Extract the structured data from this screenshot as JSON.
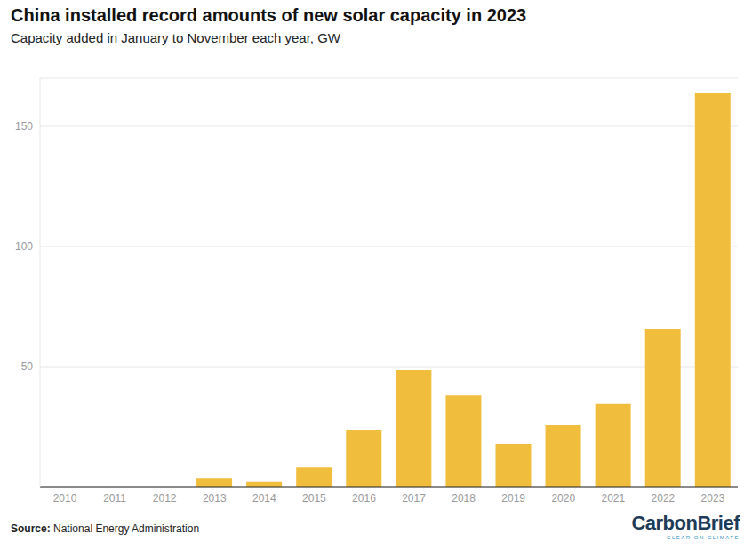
{
  "chart_data": {
    "type": "bar",
    "title": "China installed record amounts of new solar capacity in 2023",
    "subtitle": "Capacity added in January to November each year, GW",
    "categories": [
      "2010",
      "2011",
      "2012",
      "2013",
      "2014",
      "2015",
      "2016",
      "2017",
      "2018",
      "2019",
      "2020",
      "2021",
      "2022",
      "2023"
    ],
    "values": [
      0,
      0,
      0,
      3.6,
      1.9,
      8.1,
      23.7,
      48.5,
      38.1,
      17.8,
      25.6,
      34.5,
      65.6,
      163.9
    ],
    "color": "#f0be3c",
    "ylim": [
      0,
      170
    ],
    "yticks": [
      50,
      100,
      150
    ],
    "grid": true,
    "source_label": "Source:",
    "source": "National Energy Administration",
    "logo": "CarbonBrief",
    "logo_tagline": "CLEAR ON CLIMATE"
  }
}
